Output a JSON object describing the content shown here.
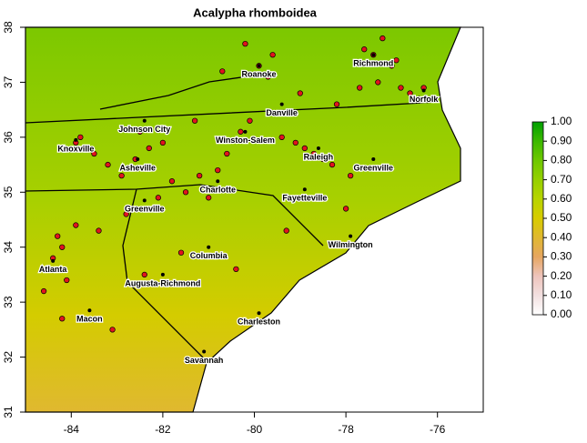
{
  "chart_data": {
    "type": "map",
    "title": "Acalypha rhomboidea",
    "xlim": [
      -85,
      -75
    ],
    "xticks": [
      -84,
      -82,
      -80,
      -78,
      -76
    ],
    "ylim": [
      31,
      38
    ],
    "yticks": [
      31,
      32,
      33,
      34,
      35,
      36,
      37,
      38
    ],
    "cities": {
      "names": [
        "Richmond",
        "Roanoke",
        "Norfolk",
        "Danville",
        "Johnson City",
        "Winston-Salem",
        "Knoxville",
        "Raleigh",
        "Asheville",
        "Greenville",
        "Charlotte",
        "Fayetteville",
        "Greenville",
        "Wilmington",
        "Columbia",
        "Atlanta",
        "Augusta-Richmond",
        "Macon",
        "Charleston",
        "Savannah"
      ],
      "x": [
        -77.4,
        -79.9,
        -76.3,
        -79.4,
        -82.4,
        -80.2,
        -83.9,
        -78.6,
        -82.55,
        -77.4,
        -80.8,
        -78.9,
        -82.4,
        -77.9,
        -81.0,
        -84.4,
        -82.0,
        -83.6,
        -79.9,
        -81.1
      ],
      "y": [
        37.5,
        37.3,
        36.85,
        36.6,
        36.3,
        36.1,
        35.95,
        35.8,
        35.6,
        35.6,
        35.2,
        35.05,
        34.85,
        34.2,
        34.0,
        33.75,
        33.5,
        32.85,
        32.8,
        32.1
      ]
    },
    "points": {
      "color": "#e0141e",
      "x": [
        -84.4,
        -84.2,
        -84.5,
        -84.3,
        -84.1,
        -83.9,
        -83.8,
        -83.5,
        -83.2,
        -82.9,
        -82.6,
        -82.5,
        -82.3,
        -82.0,
        -81.8,
        -81.5,
        -81.2,
        -81.0,
        -80.8,
        -80.6,
        -80.3,
        -80.1,
        -79.9,
        -79.7,
        -79.4,
        -79.1,
        -78.9,
        -78.7,
        -78.5,
        -78.3,
        -77.9,
        -77.6,
        -77.4,
        -77.2,
        -77.0,
        -76.8,
        -76.6,
        -76.4,
        -76.3,
        -76.9,
        -77.3,
        -77.7,
        -78.2,
        -79.0,
        -79.6,
        -80.2,
        -80.7,
        -81.3,
        -82.1,
        -82.8,
        -83.4,
        -83.9,
        -84.6,
        -84.2,
        -83.1,
        -82.4,
        -81.6,
        -80.4,
        -79.3,
        -78.0
      ],
      "y": [
        33.8,
        34.0,
        33.6,
        34.2,
        33.4,
        35.9,
        36.0,
        35.7,
        35.5,
        35.3,
        35.6,
        36.1,
        35.8,
        35.9,
        35.2,
        35.0,
        35.3,
        34.9,
        35.4,
        35.7,
        36.1,
        36.3,
        37.3,
        37.1,
        36.0,
        35.9,
        35.8,
        35.7,
        35.6,
        35.5,
        35.3,
        37.6,
        37.5,
        37.8,
        37.3,
        36.9,
        36.8,
        36.7,
        36.9,
        37.4,
        37.0,
        36.9,
        36.6,
        36.8,
        37.5,
        37.7,
        37.2,
        36.3,
        34.9,
        34.6,
        34.3,
        34.4,
        33.2,
        32.7,
        32.5,
        33.5,
        33.9,
        33.6,
        34.3,
        34.7
      ]
    },
    "colorbar": {
      "lim": [
        0,
        1
      ],
      "ticks": [
        {
          "value": 0,
          "label": "0.00"
        },
        {
          "value": 0.1,
          "label": "0.10"
        },
        {
          "value": 0.2,
          "label": "0.20"
        },
        {
          "value": 0.3,
          "label": "0.30"
        },
        {
          "value": 0.4,
          "label": "0.40"
        },
        {
          "value": 0.5,
          "label": "0.50"
        },
        {
          "value": 0.6,
          "label": "0.60"
        },
        {
          "value": 0.7,
          "label": "0.70"
        },
        {
          "value": 0.8,
          "label": "0.80"
        },
        {
          "value": 0.9,
          "label": "0.90"
        },
        {
          "value": 1,
          "label": "1.00"
        }
      ],
      "colors": [
        "#ffffff",
        "#f2e0e0",
        "#eec4bc",
        "#e6a660",
        "#e0b830",
        "#d8cc00",
        "#b8d400",
        "#96d000",
        "#6ec800",
        "#3cb800",
        "#00a000"
      ]
    }
  }
}
